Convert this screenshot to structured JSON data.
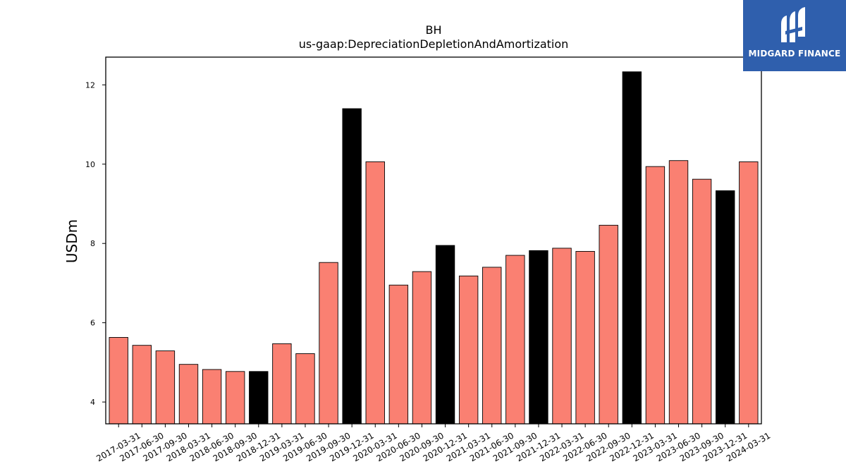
{
  "chart_data": {
    "type": "bar",
    "title": "BH",
    "subtitle": "us-gaap:DepreciationDepletionAndAmortization",
    "xlabel": "",
    "ylabel": "USDm",
    "ylim": [
      3.45,
      12.7
    ],
    "yticks": [
      4,
      6,
      8,
      10,
      12
    ],
    "grid": false,
    "categories": [
      "2017-03-31",
      "2017-06-30",
      "2017-09-30",
      "2018-03-31",
      "2018-06-30",
      "2018-09-30",
      "2018-12-31",
      "2019-03-31",
      "2019-06-30",
      "2019-09-30",
      "2019-12-31",
      "2020-03-31",
      "2020-06-30",
      "2020-09-30",
      "2020-12-31",
      "2021-03-31",
      "2021-06-30",
      "2021-09-30",
      "2021-12-31",
      "2022-03-31",
      "2022-06-30",
      "2022-09-30",
      "2022-12-31",
      "2023-03-31",
      "2023-06-30",
      "2023-09-30",
      "2023-12-31",
      "2024-03-31"
    ],
    "values": [
      5.63,
      5.43,
      5.29,
      4.95,
      4.82,
      4.77,
      4.77,
      5.47,
      5.22,
      7.52,
      11.4,
      10.06,
      6.95,
      7.29,
      7.95,
      7.18,
      7.4,
      7.7,
      7.82,
      7.88,
      7.8,
      8.46,
      12.33,
      9.94,
      10.09,
      9.62,
      9.33,
      10.06
    ],
    "highlight": [
      false,
      false,
      false,
      false,
      false,
      false,
      true,
      false,
      false,
      false,
      true,
      false,
      false,
      false,
      true,
      false,
      false,
      false,
      true,
      false,
      false,
      false,
      true,
      false,
      false,
      false,
      true,
      false
    ],
    "colors": {
      "normal": "#fa8072",
      "highlight": "#000000",
      "edge": "#000000"
    }
  },
  "logo": {
    "text": "MIDGARD FINANCE",
    "background": "#2f5fad"
  }
}
